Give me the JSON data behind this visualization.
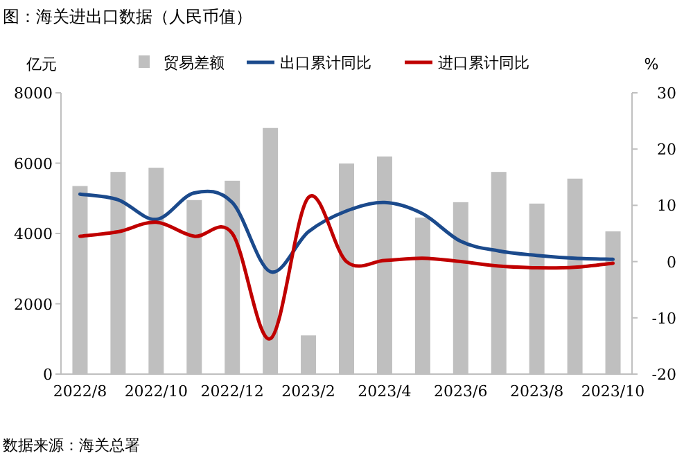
{
  "chart_data": {
    "type": "bar",
    "title": "图：海关进出口数据（人民币值）",
    "ylabel": "亿元",
    "y2label": "%",
    "categories": [
      "2022/8",
      null,
      "2022/10",
      null,
      "2022/12",
      null,
      "2023/2",
      null,
      "2023/4",
      null,
      "2023/6",
      null,
      "2023/8",
      null,
      "2023/10"
    ],
    "series": [
      {
        "name": "贸易差额",
        "color": "#bfbfbf",
        "values": [
          5350,
          5750,
          5870,
          4950,
          5500,
          7000,
          1100,
          5990,
          6190,
          4450,
          4890,
          5750,
          4850,
          5560,
          4060
        ]
      },
      {
        "name": "出口累计同比",
        "type": "line",
        "axis": "y2",
        "color": "#1b4a8c",
        "values": [
          12.0,
          11.0,
          7.5,
          12.2,
          10.5,
          -1.8,
          5.3,
          9.0,
          10.5,
          8.5,
          3.6,
          1.9,
          1.1,
          0.6,
          0.4
        ]
      },
      {
        "name": "进口累计同比",
        "type": "line",
        "axis": "y2",
        "color": "#c00000",
        "values": [
          4.5,
          5.3,
          7.0,
          4.5,
          5.0,
          -13.7,
          11.4,
          0.0,
          0.2,
          0.6,
          0.0,
          -0.8,
          -1.1,
          -1.0,
          -0.3
        ]
      }
    ],
    "ylim": [
      0,
      8000
    ],
    "yticks": [
      0,
      2000,
      4000,
      6000,
      8000
    ],
    "y2lim": [
      -20,
      30
    ],
    "y2ticks": [
      -20,
      -10,
      0,
      10,
      20,
      30
    ],
    "legend": "top",
    "grid": false,
    "annotations": [
      "数据来源：海关总署"
    ]
  }
}
